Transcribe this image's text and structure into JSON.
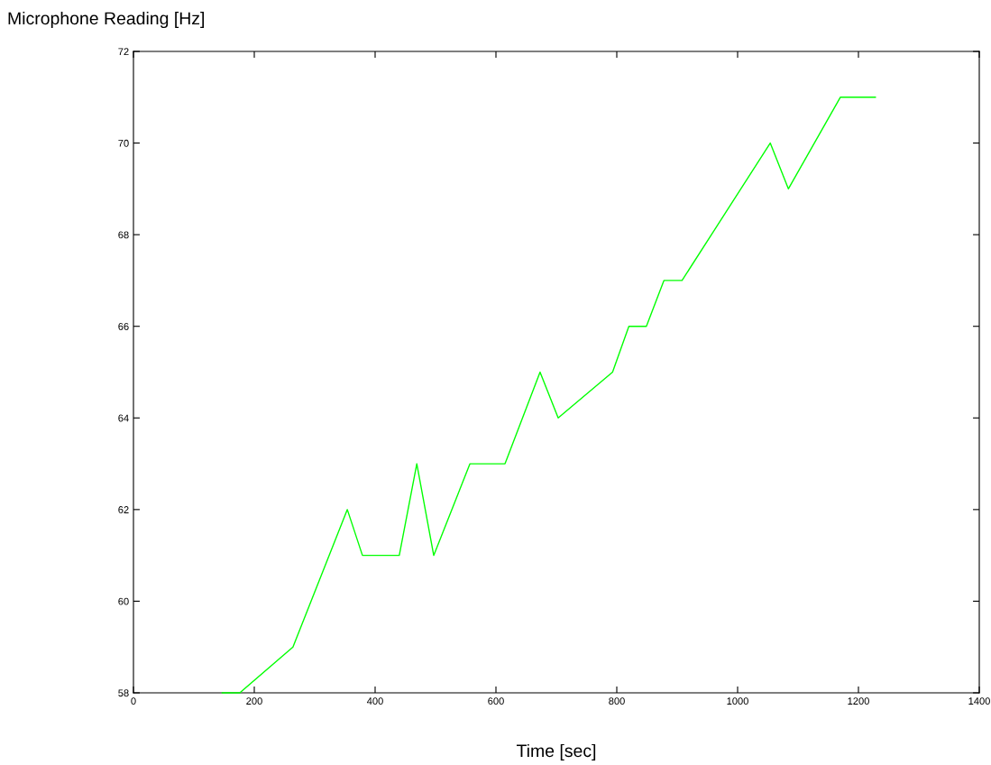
{
  "chart_data": {
    "type": "line",
    "ylabel": "Microphone Reading [Hz]",
    "xlabel": "Time [sec]",
    "x": [
      147,
      176,
      264,
      354,
      379,
      440,
      469,
      497,
      557,
      615,
      673,
      703,
      793,
      820,
      849,
      878,
      908,
      1054,
      1084,
      1170,
      1228
    ],
    "series": [
      {
        "color": "#00ff00",
        "values": [
          58,
          58,
          59,
          62,
          61,
          61,
          63,
          61,
          63,
          63,
          65,
          64,
          65,
          66,
          66,
          67,
          67,
          70,
          69,
          71,
          71
        ]
      }
    ],
    "xlim": [
      0,
      1400
    ],
    "xticks": [
      0,
      200,
      400,
      600,
      800,
      1000,
      1200,
      1400
    ],
    "ylim": [
      58,
      72
    ],
    "yticks": [
      58,
      60,
      62,
      64,
      66,
      68,
      70,
      72
    ],
    "grid": false,
    "legend": false,
    "marker": "none",
    "line_style": "solid"
  }
}
